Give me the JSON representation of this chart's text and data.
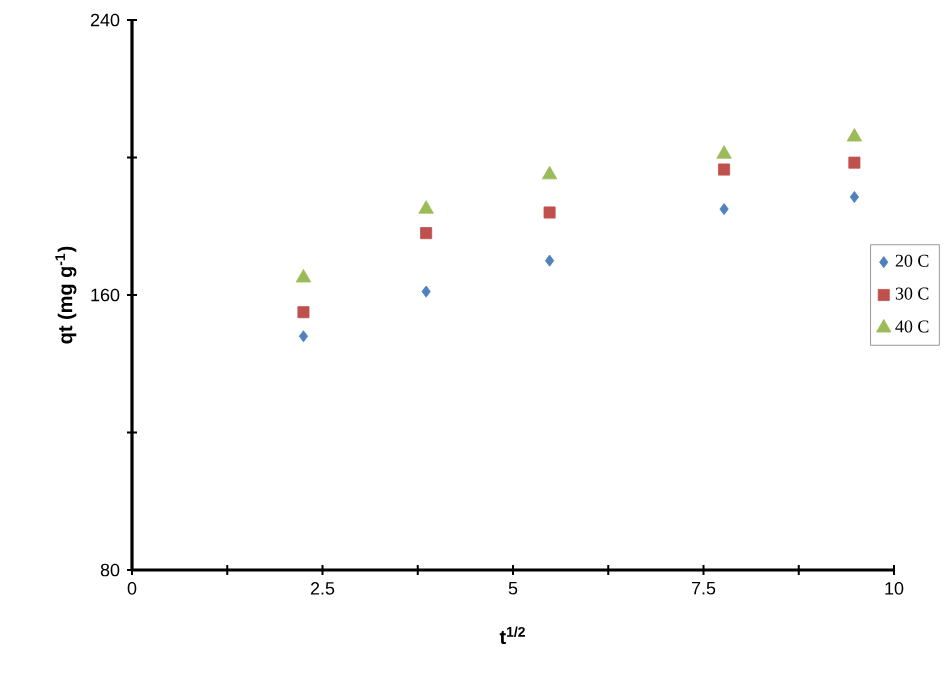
{
  "chart_data": {
    "type": "scatter",
    "xlabel": "t$^{1/2}$",
    "ylabel": "qt (mg g$^{-1}$)",
    "x": [
      2.25,
      3.86,
      5.48,
      7.77,
      9.48
    ],
    "xlim": [
      0,
      10
    ],
    "ylim": [
      80,
      240
    ],
    "xticks": [
      0,
      {
        "value": 1.25,
        "label": null
      },
      2.5,
      {
        "value": 3.75,
        "label": null
      },
      5,
      {
        "value": 6.25,
        "label": null
      },
      7.5,
      {
        "value": 8.75,
        "label": null
      },
      10
    ],
    "yticks": [
      80,
      {
        "value": 120,
        "label": null
      },
      160,
      {
        "value": 200,
        "label": null
      },
      240
    ],
    "legend": "right",
    "grid": false,
    "series": [
      {
        "name": "20 C",
        "color": "#4f81bd",
        "marker": "diamond",
        "values": [
          148,
          161,
          170,
          185,
          188.5
        ]
      },
      {
        "name": "30 C",
        "color": "#c0504d",
        "marker": "square",
        "values": [
          155,
          178,
          184,
          196.5,
          198.5
        ]
      },
      {
        "name": "40 C",
        "color": "#9bbb59",
        "marker": "triangle",
        "values": [
          165,
          185,
          195,
          201,
          206
        ]
      }
    ]
  }
}
